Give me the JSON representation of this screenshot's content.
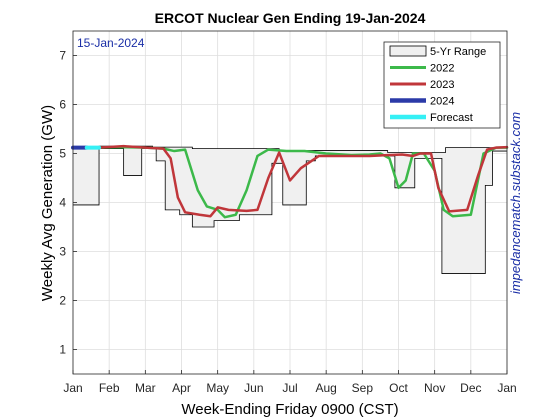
{
  "chart_data": {
    "type": "line",
    "title": "ERCOT Nuclear Gen Ending 19-Jan-2024",
    "subtitle": "15-Jan-2024",
    "xlabel": "Week-Ending Friday 0900 (CST)",
    "ylabel": "Weekly Avg Generation (GW)",
    "side_label": "impedancematch.substack.com",
    "x_unit": "month",
    "x_ticks": [
      "Jan",
      "Feb",
      "Mar",
      "Apr",
      "May",
      "Jun",
      "Jul",
      "Aug",
      "Sep",
      "Oct",
      "Nov",
      "Dec",
      "Jan"
    ],
    "xlim": [
      0,
      12
    ],
    "ylim": [
      0.5,
      7.5
    ],
    "y_ticks": [
      1,
      2,
      3,
      4,
      5,
      6,
      7
    ],
    "grid": true,
    "legend_position": "top-right",
    "colors": {
      "range_fill": "#f0f0f0",
      "range_edge": "#000000",
      "s2022": "#3cb94a",
      "s2023": "#c0363a",
      "s2024": "#2b3aa8",
      "forecast": "#35f0f5",
      "subtitle": "#1a2ea6",
      "side_label": "#1a2ea6"
    },
    "series": [
      {
        "name": "5-Yr Range",
        "kind": "range",
        "upper": [
          [
            0,
            5.13
          ],
          [
            0.72,
            5.13
          ],
          [
            0.72,
            5.15
          ],
          [
            2.2,
            5.15
          ],
          [
            2.2,
            5.13
          ],
          [
            3.3,
            5.13
          ],
          [
            3.3,
            5.1
          ],
          [
            5.7,
            5.1
          ],
          [
            5.7,
            5.06
          ],
          [
            8.7,
            5.06
          ],
          [
            8.7,
            5.02
          ],
          [
            10.3,
            5.02
          ],
          [
            10.3,
            5.12
          ],
          [
            12,
            5.12
          ]
        ],
        "lower": [
          [
            0,
            3.95
          ],
          [
            0.72,
            3.95
          ],
          [
            0.72,
            5.1
          ],
          [
            1.4,
            5.1
          ],
          [
            1.4,
            4.55
          ],
          [
            1.9,
            4.55
          ],
          [
            1.9,
            5.1
          ],
          [
            2.3,
            5.1
          ],
          [
            2.3,
            4.85
          ],
          [
            2.55,
            4.85
          ],
          [
            2.55,
            3.85
          ],
          [
            2.95,
            3.85
          ],
          [
            2.95,
            3.75
          ],
          [
            3.3,
            3.75
          ],
          [
            3.3,
            3.5
          ],
          [
            3.9,
            3.5
          ],
          [
            3.9,
            3.63
          ],
          [
            4.6,
            3.63
          ],
          [
            4.6,
            3.75
          ],
          [
            5.5,
            3.75
          ],
          [
            5.5,
            4.8
          ],
          [
            5.8,
            4.8
          ],
          [
            5.8,
            3.95
          ],
          [
            6.45,
            3.95
          ],
          [
            6.45,
            4.85
          ],
          [
            6.7,
            4.85
          ],
          [
            6.7,
            4.95
          ],
          [
            8.9,
            4.95
          ],
          [
            8.9,
            4.3
          ],
          [
            9.45,
            4.3
          ],
          [
            9.45,
            4.9
          ],
          [
            10.2,
            4.9
          ],
          [
            10.2,
            2.55
          ],
          [
            11.4,
            2.55
          ],
          [
            11.4,
            4.35
          ],
          [
            11.6,
            4.35
          ],
          [
            11.6,
            5.05
          ],
          [
            12,
            5.05
          ]
        ]
      },
      {
        "name": "2022",
        "kind": "line",
        "points": [
          [
            0.72,
            5.12
          ],
          [
            1.3,
            5.13
          ],
          [
            2.0,
            5.12
          ],
          [
            2.5,
            5.1
          ],
          [
            2.8,
            5.05
          ],
          [
            3.1,
            5.08
          ],
          [
            3.45,
            4.25
          ],
          [
            3.7,
            3.92
          ],
          [
            4.0,
            3.85
          ],
          [
            4.2,
            3.7
          ],
          [
            4.5,
            3.75
          ],
          [
            4.8,
            4.25
          ],
          [
            5.1,
            4.95
          ],
          [
            5.4,
            5.08
          ],
          [
            5.9,
            5.05
          ],
          [
            6.4,
            5.05
          ],
          [
            7.0,
            5.0
          ],
          [
            7.7,
            4.97
          ],
          [
            8.2,
            4.98
          ],
          [
            8.5,
            5.0
          ],
          [
            8.75,
            4.9
          ],
          [
            9.0,
            4.3
          ],
          [
            9.2,
            4.45
          ],
          [
            9.4,
            5.0
          ],
          [
            9.7,
            5.0
          ],
          [
            10.0,
            4.65
          ],
          [
            10.25,
            3.85
          ],
          [
            10.5,
            3.72
          ],
          [
            11.0,
            3.75
          ],
          [
            11.35,
            5.0
          ],
          [
            11.7,
            5.12
          ],
          [
            12,
            5.12
          ]
        ]
      },
      {
        "name": "2023",
        "kind": "line",
        "points": [
          [
            0.72,
            5.12
          ],
          [
            1.4,
            5.15
          ],
          [
            2.0,
            5.12
          ],
          [
            2.5,
            5.1
          ],
          [
            2.7,
            4.9
          ],
          [
            2.9,
            4.1
          ],
          [
            3.1,
            3.8
          ],
          [
            3.5,
            3.75
          ],
          [
            3.8,
            3.72
          ],
          [
            4.0,
            3.9
          ],
          [
            4.3,
            3.85
          ],
          [
            4.8,
            3.83
          ],
          [
            5.1,
            3.85
          ],
          [
            5.4,
            4.5
          ],
          [
            5.7,
            5.02
          ],
          [
            6.0,
            4.45
          ],
          [
            6.3,
            4.7
          ],
          [
            6.8,
            4.95
          ],
          [
            7.5,
            4.95
          ],
          [
            8.2,
            4.95
          ],
          [
            8.8,
            4.97
          ],
          [
            9.1,
            4.98
          ],
          [
            9.4,
            4.95
          ],
          [
            9.6,
            5.0
          ],
          [
            9.9,
            5.0
          ],
          [
            10.1,
            4.3
          ],
          [
            10.4,
            3.82
          ],
          [
            10.9,
            3.85
          ],
          [
            11.2,
            4.55
          ],
          [
            11.45,
            5.08
          ],
          [
            11.7,
            5.12
          ],
          [
            12,
            5.13
          ]
        ]
      },
      {
        "name": "2024",
        "kind": "line",
        "points": [
          [
            0,
            5.12
          ],
          [
            0.38,
            5.12
          ]
        ]
      },
      {
        "name": "Forecast",
        "kind": "line",
        "points": [
          [
            0.38,
            5.12
          ],
          [
            0.72,
            5.12
          ]
        ]
      }
    ]
  }
}
